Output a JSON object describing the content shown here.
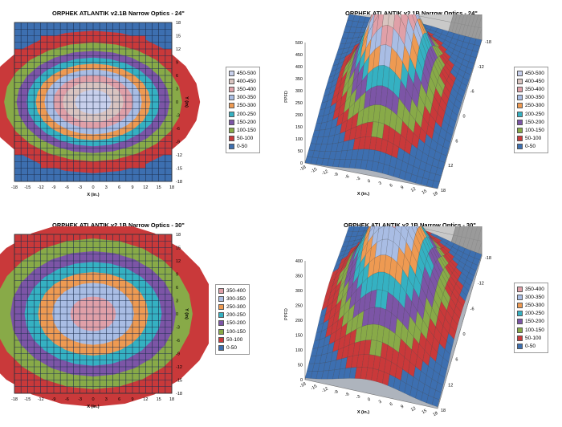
{
  "chart_data": [
    {
      "type": "heatmap",
      "title": "ORPHEK ATLANTIK  v2.1B Narrow Optics - 24\"",
      "xlabel": "X (in.)",
      "ylabel": "Y (in)",
      "x_ticks": [
        -18,
        -15,
        -12,
        -9,
        -6,
        -3,
        0,
        3,
        6,
        9,
        12,
        15,
        18
      ],
      "y_ticks": [
        18,
        15,
        12,
        9,
        6,
        3,
        0,
        -3,
        -6,
        -9,
        -12,
        -15,
        -18
      ],
      "xlim": [
        -18,
        18
      ],
      "ylim": [
        -18,
        18
      ],
      "peak_ppfd": 480,
      "spread_x_in": 11.5,
      "spread_y_in": 7.6,
      "bands": [
        "450-500",
        "400-450",
        "350-400",
        "300-350",
        "250-300",
        "200-250",
        "150-200",
        "100-150",
        "50-100",
        "0-50"
      ]
    },
    {
      "type": "area",
      "surface": true,
      "title": "ORPHEK ATLANTIK  v2.1B  Narrow Optics - 24\"",
      "xlabel": "X (in.)",
      "ylabel": "PPFD",
      "x_ticks": [
        -18,
        -15,
        -12,
        -9,
        -6,
        -3,
        0,
        3,
        6,
        9,
        12,
        15,
        18
      ],
      "y_ticks": [
        18,
        12,
        6,
        0,
        -6,
        -12,
        -18
      ],
      "z_ticks": [
        0,
        50,
        100,
        150,
        200,
        250,
        300,
        350,
        400,
        450,
        500
      ],
      "zlim": [
        0,
        500
      ],
      "peak_ppfd": 480,
      "bands": [
        "450-500",
        "400-450",
        "350-400",
        "300-350",
        "250-300",
        "200-250",
        "150-200",
        "100-150",
        "50-100",
        "0-50"
      ]
    },
    {
      "type": "heatmap",
      "title": "ORPHEK ATLANTIK  v2.1B Narrow Optics - 30\"",
      "xlabel": "X (in.)",
      "ylabel": "Y (in)",
      "x_ticks": [
        -18,
        -15,
        -12,
        -9,
        -6,
        -3,
        0,
        3,
        6,
        9,
        12,
        15,
        18
      ],
      "y_ticks": [
        18,
        15,
        12,
        9,
        6,
        3,
        0,
        -3,
        -6,
        -9,
        -12,
        -15,
        -18
      ],
      "xlim": [
        -18,
        18
      ],
      "ylim": [
        -18,
        18
      ],
      "peak_ppfd": 375,
      "spread_x_in": 14,
      "spread_y_in": 10.5,
      "bands": [
        "350-400",
        "300-350",
        "250-300",
        "200-250",
        "150-200",
        "100-150",
        "50-100",
        "0-50"
      ]
    },
    {
      "type": "area",
      "surface": true,
      "title": "ORPHEK ATLANTIK  v2.1B  Narrow Optics - 30\"",
      "xlabel": "X (in.)",
      "ylabel": "PPFD",
      "x_ticks": [
        -18,
        -15,
        -12,
        -9,
        -6,
        -3,
        0,
        3,
        6,
        9,
        12,
        15,
        18
      ],
      "y_ticks": [
        18,
        12,
        6,
        0,
        -6,
        -12,
        -18
      ],
      "z_ticks": [
        0,
        50,
        100,
        150,
        200,
        250,
        300,
        350,
        400
      ],
      "zlim": [
        0,
        400
      ],
      "peak_ppfd": 375,
      "bands": [
        "350-400",
        "300-350",
        "250-300",
        "200-250",
        "150-200",
        "100-150",
        "50-100",
        "0-50"
      ]
    }
  ],
  "band_colors": {
    "450-500": "#c8d0ec",
    "400-450": "#d9c4c0",
    "350-400": "#e0a0a8",
    "300-350": "#a9bde4",
    "250-300": "#ee9a52",
    "200-250": "#35b1c2",
    "150-200": "#7c55a6",
    "100-150": "#88aa48",
    "50-100": "#c9393a",
    "0-50": "#3d6fb0"
  }
}
